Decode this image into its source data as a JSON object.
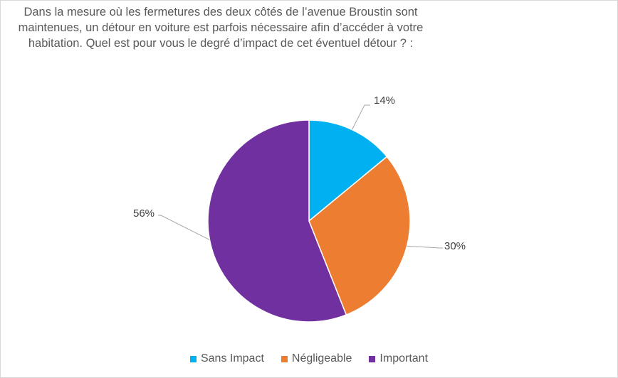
{
  "chart_data": {
    "type": "pie",
    "title_lines": [
      "Dans la mesure où les fermetures des deux côtés de l’avenue Broustin sont",
      "maintenues,  un détour en voiture est parfois nécessaire afin d’accéder à votre",
      "habitation. Quel est pour vous le degré d’impact de cet éventuel détour ? :"
    ],
    "categories": [
      "Sans Impact",
      "Négligeable",
      "Important"
    ],
    "values": [
      14,
      30,
      56
    ],
    "data_labels": [
      "14%",
      "30%",
      "56%"
    ],
    "colors": [
      "#00B0F0",
      "#ED7D31",
      "#7030A0"
    ],
    "legend_position": "bottom"
  }
}
